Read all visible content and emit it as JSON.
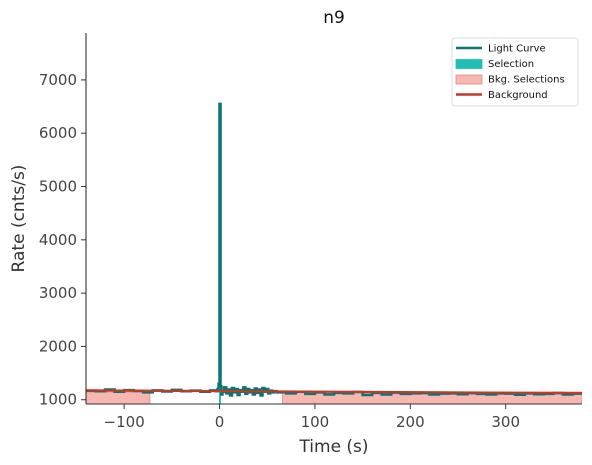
{
  "chart_data": {
    "type": "line",
    "title": "n9",
    "xlabel": "Time (s)",
    "ylabel": "Rate (cnts/s)",
    "xlim": [
      -140,
      380
    ],
    "ylim": [
      920,
      7880
    ],
    "xticks": [
      -100,
      0,
      100,
      200,
      300
    ],
    "xtick_labels": [
      "−100",
      "0",
      "100",
      "200",
      "300"
    ],
    "yticks": [
      1000,
      2000,
      3000,
      4000,
      5000,
      6000,
      7000
    ],
    "ytick_labels": [
      "1000",
      "2000",
      "3000",
      "4000",
      "5000",
      "6000",
      "7000"
    ],
    "grid": false,
    "legend_position": "top-right",
    "colors": {
      "light_curve": "#0e7470",
      "selection": "#1fbfb5",
      "bkg_selection": "#f7b6b0",
      "background": "#c0392b",
      "axis": "#333333"
    },
    "legend": [
      "Light Curve",
      "Selection",
      "Bkg. Selections",
      "Background"
    ],
    "selection_range": [
      -0.5,
      1.5
    ],
    "bkg_selections": [
      [
        -140,
        -73
      ],
      [
        66,
        380
      ]
    ],
    "background_line": {
      "x": [
        -140,
        380
      ],
      "y": [
        1175,
        1125
      ]
    },
    "light_curve": {
      "x": [
        -140,
        -130,
        -120,
        -110,
        -100,
        -90,
        -80,
        -70,
        -60,
        -50,
        -40,
        -30,
        -20,
        -10,
        -4,
        -2,
        -1,
        0,
        1,
        2,
        3,
        5,
        7,
        9,
        11,
        13,
        15,
        17,
        19,
        21,
        23,
        25,
        27,
        29,
        31,
        33,
        35,
        37,
        39,
        41,
        43,
        45,
        47,
        49,
        51,
        53,
        55,
        57,
        60,
        70,
        80,
        90,
        100,
        110,
        120,
        130,
        140,
        150,
        160,
        170,
        180,
        190,
        200,
        210,
        220,
        230,
        240,
        250,
        260,
        270,
        280,
        290,
        300,
        310,
        320,
        330,
        340,
        350,
        360,
        370,
        380
      ],
      "y": [
        1170,
        1160,
        1190,
        1150,
        1180,
        1165,
        1140,
        1175,
        1155,
        1185,
        1160,
        1170,
        1150,
        1175,
        1160,
        1200,
        1300,
        6550,
        1250,
        1100,
        1150,
        1230,
        1120,
        1190,
        1080,
        1220,
        1140,
        1200,
        1090,
        1180,
        1150,
        1230,
        1110,
        1200,
        1140,
        1180,
        1100,
        1210,
        1130,
        1190,
        1080,
        1220,
        1150,
        1200,
        1120,
        1170,
        1140,
        1160,
        1140,
        1120,
        1150,
        1110,
        1140,
        1100,
        1130,
        1120,
        1145,
        1090,
        1130,
        1100,
        1135,
        1110,
        1120,
        1125,
        1100,
        1115,
        1120,
        1105,
        1125,
        1110,
        1100,
        1120,
        1115,
        1095,
        1120,
        1105,
        1110,
        1125,
        1100,
        1115,
        1120
      ]
    }
  }
}
